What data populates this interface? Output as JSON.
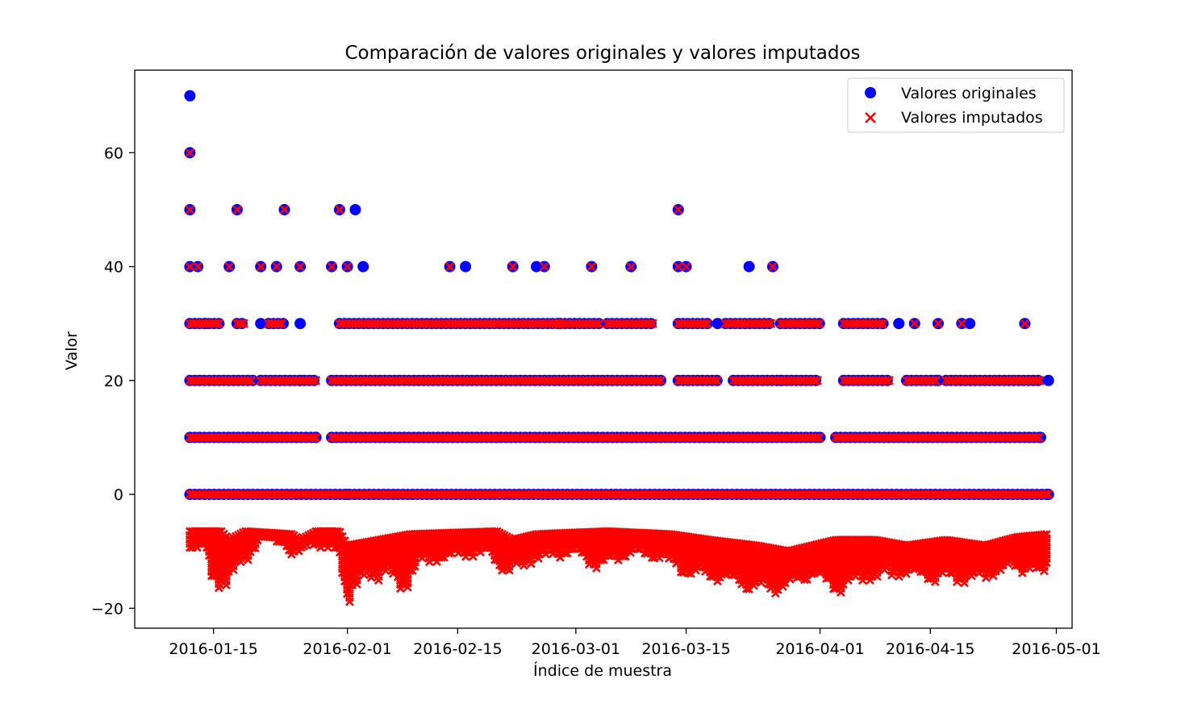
{
  "chart_data": {
    "type": "scatter",
    "title": "Comparación de valores originales y valores imputados",
    "xlabel": "Índice de muestra",
    "ylabel": "Valor",
    "xlim": [
      "2016-01-05",
      "2016-05-03"
    ],
    "ylim": [
      -23.5,
      74.5
    ],
    "x_ticks": [
      "2016-01-15",
      "2016-02-01",
      "2016-02-15",
      "2016-03-01",
      "2016-03-15",
      "2016-04-01",
      "2016-04-15",
      "2016-05-01"
    ],
    "y_ticks": [
      -20,
      0,
      20,
      40,
      60
    ],
    "y_tick_labels": [
      "−20",
      "0",
      "20",
      "40",
      "60"
    ],
    "grid": false,
    "legend_position": "upper right",
    "colors": {
      "original": "#0000ff",
      "imputed": "#ff0000"
    },
    "series": [
      {
        "name": "Valores originales",
        "marker": "circle",
        "color": "#0000ff",
        "segments": [
          {
            "y": 0,
            "x_start": "2016-01-12",
            "x_end": "2016-04-30"
          },
          {
            "y": 10,
            "x_start": "2016-01-12",
            "x_end": "2016-01-28"
          },
          {
            "y": 10,
            "x_start": "2016-01-30",
            "x_end": "2016-04-01"
          },
          {
            "y": 10,
            "x_start": "2016-04-03",
            "x_end": "2016-04-29"
          },
          {
            "y": 20,
            "x_start": "2016-01-12",
            "x_end": "2016-01-20"
          },
          {
            "y": 20,
            "x_start": "2016-01-21",
            "x_end": "2016-01-28"
          },
          {
            "y": 20,
            "x_start": "2016-01-30",
            "x_end": "2016-03-12"
          },
          {
            "y": 20,
            "x_start": "2016-03-14",
            "x_end": "2016-03-19"
          },
          {
            "y": 20,
            "x_start": "2016-03-21",
            "x_end": "2016-04-01"
          },
          {
            "y": 20,
            "x_start": "2016-04-04",
            "x_end": "2016-04-10"
          },
          {
            "y": 20,
            "x_start": "2016-04-12",
            "x_end": "2016-04-16"
          },
          {
            "y": 20,
            "x_start": "2016-04-17",
            "x_end": "2016-04-29"
          },
          {
            "y": 30,
            "x_start": "2016-01-12",
            "x_end": "2016-01-16"
          },
          {
            "y": 30,
            "x_start": "2016-01-18",
            "x_end": "2016-01-19"
          },
          {
            "y": 30,
            "x_start": "2016-01-22",
            "x_end": "2016-01-24"
          },
          {
            "y": 30,
            "x_start": "2016-01-31",
            "x_end": "2016-02-28"
          },
          {
            "y": 30,
            "x_start": "2016-02-28",
            "x_end": "2016-03-04"
          },
          {
            "y": 30,
            "x_start": "2016-03-05",
            "x_end": "2016-03-11"
          },
          {
            "y": 30,
            "x_start": "2016-03-14",
            "x_end": "2016-03-18"
          },
          {
            "y": 30,
            "x_start": "2016-03-20",
            "x_end": "2016-03-26"
          },
          {
            "y": 30,
            "x_start": "2016-03-27",
            "x_end": "2016-04-01"
          },
          {
            "y": 30,
            "x_start": "2016-04-04",
            "x_end": "2016-04-09"
          }
        ],
        "points": [
          [
            "2016-01-12",
            70
          ],
          [
            "2016-01-12",
            60
          ],
          [
            "2016-01-12",
            50
          ],
          [
            "2016-01-18",
            50
          ],
          [
            "2016-01-24",
            50
          ],
          [
            "2016-01-31",
            50
          ],
          [
            "2016-02-02",
            50
          ],
          [
            "2016-03-14",
            50
          ],
          [
            "2016-01-12",
            40
          ],
          [
            "2016-01-13",
            40
          ],
          [
            "2016-01-17",
            40
          ],
          [
            "2016-01-21",
            40
          ],
          [
            "2016-01-23",
            40
          ],
          [
            "2016-01-26",
            40
          ],
          [
            "2016-01-30",
            40
          ],
          [
            "2016-02-01",
            40
          ],
          [
            "2016-02-03",
            40
          ],
          [
            "2016-02-14",
            40
          ],
          [
            "2016-02-16",
            40
          ],
          [
            "2016-02-22",
            40
          ],
          [
            "2016-02-25",
            40
          ],
          [
            "2016-02-26",
            40
          ],
          [
            "2016-03-03",
            40
          ],
          [
            "2016-03-08",
            40
          ],
          [
            "2016-03-14",
            40
          ],
          [
            "2016-03-15",
            40
          ],
          [
            "2016-03-23",
            40
          ],
          [
            "2016-03-26",
            40
          ],
          [
            "2016-04-09",
            30
          ],
          [
            "2016-04-11",
            30
          ],
          [
            "2016-04-13",
            30
          ],
          [
            "2016-04-16",
            30
          ],
          [
            "2016-04-19",
            30
          ],
          [
            "2016-04-20",
            30
          ],
          [
            "2016-04-27",
            30
          ],
          [
            "2016-01-14",
            30
          ],
          [
            "2016-01-21",
            30
          ],
          [
            "2016-01-26",
            30
          ],
          [
            "2016-02-28",
            30
          ],
          [
            "2016-03-19",
            30
          ],
          [
            "2016-04-16",
            20
          ],
          [
            "2016-04-30",
            20
          ],
          [
            "2016-03-27",
            20
          ],
          [
            "2016-01-26",
            20
          ],
          [
            "2016-04-01",
            10
          ],
          [
            "2016-04-29",
            10
          ],
          [
            "2016-01-28",
            10
          ],
          [
            "2016-02-01",
            0
          ],
          [
            "2016-04-30",
            0
          ]
        ]
      },
      {
        "name": "Valores imputados",
        "marker": "x",
        "color": "#ff0000",
        "segments": [
          {
            "y": 0,
            "x_start": "2016-01-12",
            "x_end": "2016-04-30"
          },
          {
            "y": 10,
            "x_start": "2016-01-12",
            "x_end": "2016-01-28"
          },
          {
            "y": 10,
            "x_start": "2016-01-30",
            "x_end": "2016-04-01"
          },
          {
            "y": 10,
            "x_start": "2016-04-03",
            "x_end": "2016-04-29"
          },
          {
            "y": 20,
            "x_start": "2016-01-12",
            "x_end": "2016-01-20"
          },
          {
            "y": 20,
            "x_start": "2016-01-21",
            "x_end": "2016-01-28"
          },
          {
            "y": 20,
            "x_start": "2016-01-30",
            "x_end": "2016-03-12"
          },
          {
            "y": 20,
            "x_start": "2016-03-14",
            "x_end": "2016-03-19"
          },
          {
            "y": 20,
            "x_start": "2016-03-21",
            "x_end": "2016-04-01"
          },
          {
            "y": 20,
            "x_start": "2016-04-04",
            "x_end": "2016-04-10"
          },
          {
            "y": 20,
            "x_start": "2016-04-12",
            "x_end": "2016-04-16"
          },
          {
            "y": 20,
            "x_start": "2016-04-17",
            "x_end": "2016-04-29"
          },
          {
            "y": 30,
            "x_start": "2016-01-12",
            "x_end": "2016-01-16"
          },
          {
            "y": 30,
            "x_start": "2016-01-18",
            "x_end": "2016-01-19"
          },
          {
            "y": 30,
            "x_start": "2016-01-22",
            "x_end": "2016-01-24"
          },
          {
            "y": 30,
            "x_start": "2016-01-31",
            "x_end": "2016-02-28"
          },
          {
            "y": 30,
            "x_start": "2016-02-28",
            "x_end": "2016-03-04"
          },
          {
            "y": 30,
            "x_start": "2016-03-05",
            "x_end": "2016-03-11"
          },
          {
            "y": 30,
            "x_start": "2016-03-14",
            "x_end": "2016-03-18"
          },
          {
            "y": 30,
            "x_start": "2016-03-20",
            "x_end": "2016-03-26"
          },
          {
            "y": 30,
            "x_start": "2016-03-27",
            "x_end": "2016-04-01"
          },
          {
            "y": 30,
            "x_start": "2016-04-04",
            "x_end": "2016-04-09"
          }
        ],
        "points": [
          [
            "2016-01-12",
            60
          ],
          [
            "2016-01-12",
            50
          ],
          [
            "2016-01-18",
            50
          ],
          [
            "2016-01-24",
            50
          ],
          [
            "2016-01-31",
            50
          ],
          [
            "2016-03-14",
            50
          ],
          [
            "2016-01-12",
            40
          ],
          [
            "2016-01-13",
            40
          ],
          [
            "2016-01-17",
            40
          ],
          [
            "2016-01-21",
            40
          ],
          [
            "2016-01-23",
            40
          ],
          [
            "2016-01-26",
            40
          ],
          [
            "2016-01-30",
            40
          ],
          [
            "2016-02-01",
            40
          ],
          [
            "2016-02-14",
            40
          ],
          [
            "2016-02-22",
            40
          ],
          [
            "2016-02-26",
            40
          ],
          [
            "2016-03-03",
            40
          ],
          [
            "2016-03-08",
            40
          ],
          [
            "2016-03-14",
            40
          ],
          [
            "2016-03-15",
            40
          ],
          [
            "2016-03-26",
            40
          ],
          [
            "2016-04-09",
            30
          ],
          [
            "2016-04-13",
            30
          ],
          [
            "2016-04-16",
            30
          ],
          [
            "2016-04-19",
            30
          ],
          [
            "2016-04-27",
            30
          ]
        ],
        "negative_band": {
          "x_start": "2016-01-12",
          "x_end": "2016-04-30",
          "y_top": [
            [
              "2016-01-12",
              -6.5
            ],
            [
              "2016-01-16",
              -6.5
            ],
            [
              "2016-01-17",
              -8
            ],
            [
              "2016-01-19",
              -6.5
            ],
            [
              "2016-01-25",
              -7
            ],
            [
              "2016-01-26",
              -8
            ],
            [
              "2016-01-28",
              -6.5
            ],
            [
              "2016-01-31",
              -6.5
            ],
            [
              "2016-02-01",
              -9
            ],
            [
              "2016-02-05",
              -8
            ],
            [
              "2016-02-09",
              -7
            ],
            [
              "2016-02-20",
              -6.5
            ],
            [
              "2016-02-22",
              -8
            ],
            [
              "2016-02-25",
              -7
            ],
            [
              "2016-03-05",
              -6.5
            ],
            [
              "2016-03-13",
              -7
            ],
            [
              "2016-03-18",
              -8
            ],
            [
              "2016-03-24",
              -9
            ],
            [
              "2016-03-28",
              -10
            ],
            [
              "2016-04-03",
              -8
            ],
            [
              "2016-04-08",
              -8
            ],
            [
              "2016-04-12",
              -9
            ],
            [
              "2016-04-17",
              -8
            ],
            [
              "2016-04-22",
              -9
            ],
            [
              "2016-04-26",
              -7.5
            ],
            [
              "2016-04-30",
              -7
            ]
          ],
          "y_bottom": [
            [
              "2016-01-12",
              -10
            ],
            [
              "2016-01-14",
              -10
            ],
            [
              "2016-01-15",
              -18
            ],
            [
              "2016-01-17",
              -16
            ],
            [
              "2016-01-19",
              -13
            ],
            [
              "2016-01-21",
              -8
            ],
            [
              "2016-01-24",
              -9
            ],
            [
              "2016-01-25",
              -12
            ],
            [
              "2016-01-27",
              -9
            ],
            [
              "2016-01-31",
              -11
            ],
            [
              "2016-02-01",
              -20
            ],
            [
              "2016-02-03",
              -16
            ],
            [
              "2016-02-06",
              -15
            ],
            [
              "2016-02-08",
              -18.5
            ],
            [
              "2016-02-10",
              -13
            ],
            [
              "2016-02-14",
              -12
            ],
            [
              "2016-02-19",
              -11
            ],
            [
              "2016-02-21",
              -15
            ],
            [
              "2016-02-25",
              -12
            ],
            [
              "2016-03-01",
              -11
            ],
            [
              "2016-03-04",
              -14
            ],
            [
              "2016-03-08",
              -11
            ],
            [
              "2016-03-12",
              -12
            ],
            [
              "2016-03-15",
              -15
            ],
            [
              "2016-03-20",
              -16
            ],
            [
              "2016-03-24",
              -18
            ],
            [
              "2016-03-27",
              -18
            ],
            [
              "2016-03-31",
              -15
            ],
            [
              "2016-04-03",
              -18
            ],
            [
              "2016-04-07",
              -16
            ],
            [
              "2016-04-12",
              -15
            ],
            [
              "2016-04-16",
              -16
            ],
            [
              "2016-04-21",
              -16
            ],
            [
              "2016-04-25",
              -14
            ],
            [
              "2016-04-28",
              -14
            ],
            [
              "2016-04-29",
              -16.5
            ],
            [
              "2016-04-30",
              -14
            ]
          ]
        }
      }
    ]
  }
}
